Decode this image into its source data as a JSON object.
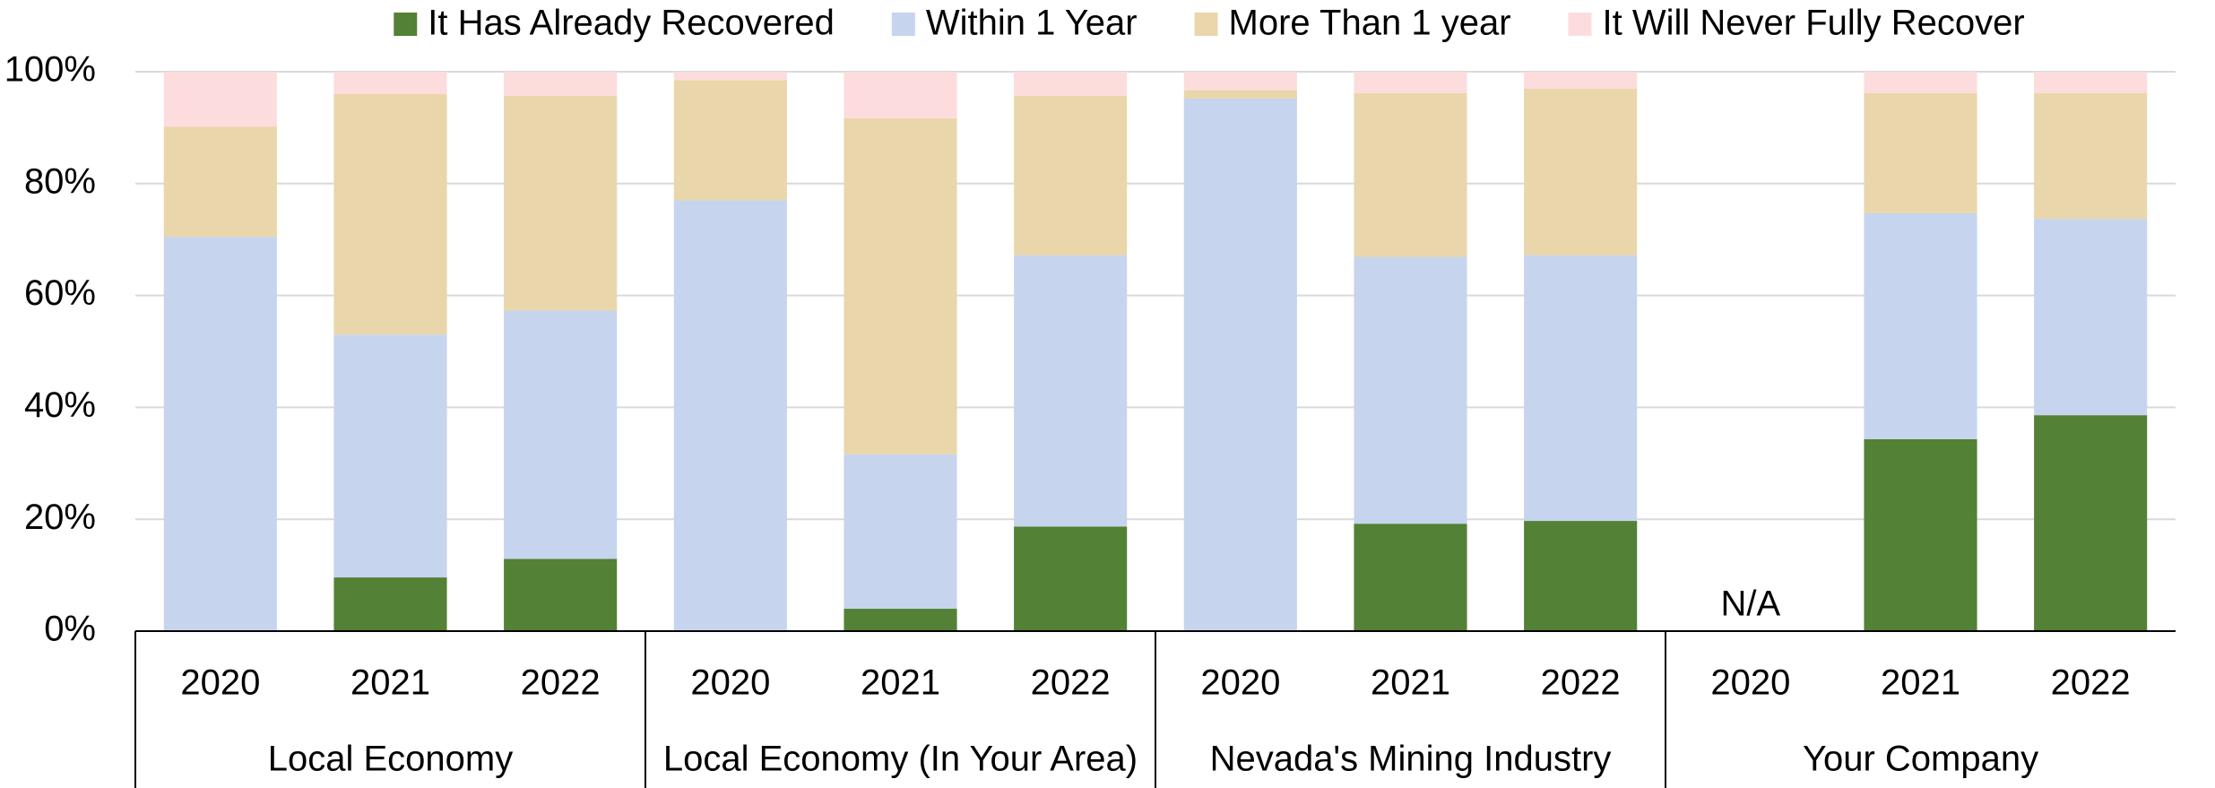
{
  "chart_data": {
    "type": "stacked_bar",
    "categories": [
      "2020",
      "2021",
      "2022",
      "2020",
      "2021",
      "2022",
      "2020",
      "2021",
      "2022",
      "2020",
      "2021",
      "2022"
    ],
    "groups": [
      "Local Economy",
      "Local Economy (In Your Area)",
      "Nevada's Mining Industry",
      "Your Company"
    ],
    "series": [
      {
        "name": "It Has Already Recovered",
        "color": "#538135",
        "values": [
          0,
          9.6,
          12.9,
          0,
          4.0,
          18.7,
          0,
          19.2,
          19.7,
          null,
          34.3,
          38.6
        ]
      },
      {
        "name": "Within 1 Year",
        "color": "#c6d4ee",
        "values": [
          70.5,
          43.4,
          44.4,
          77.0,
          27.6,
          48.5,
          95.2,
          47.7,
          47.5,
          null,
          40.4,
          35.1
        ]
      },
      {
        "name": "More Than 1 year",
        "color": "#e9d6ab",
        "values": [
          19.7,
          43.0,
          38.4,
          21.5,
          60.1,
          28.5,
          1.5,
          29.3,
          29.8,
          null,
          21.5,
          22.5
        ]
      },
      {
        "name": "It Will Never Fully Recover",
        "color": "#fddcdd",
        "values": [
          9.8,
          4.0,
          4.3,
          1.5,
          8.3,
          4.3,
          3.3,
          3.8,
          3.0,
          null,
          3.8,
          3.8
        ]
      }
    ],
    "annotations": [
      "N/A"
    ],
    "ylim": [
      0,
      100
    ],
    "yticks": [
      {
        "value": 0,
        "label": "0%"
      },
      {
        "value": 20,
        "label": "20%"
      },
      {
        "value": 40,
        "label": "40%"
      },
      {
        "value": 60,
        "label": "60%"
      },
      {
        "value": 80,
        "label": "80%"
      },
      {
        "value": 100,
        "label": "100%"
      }
    ],
    "grid": true,
    "legend": "top"
  }
}
